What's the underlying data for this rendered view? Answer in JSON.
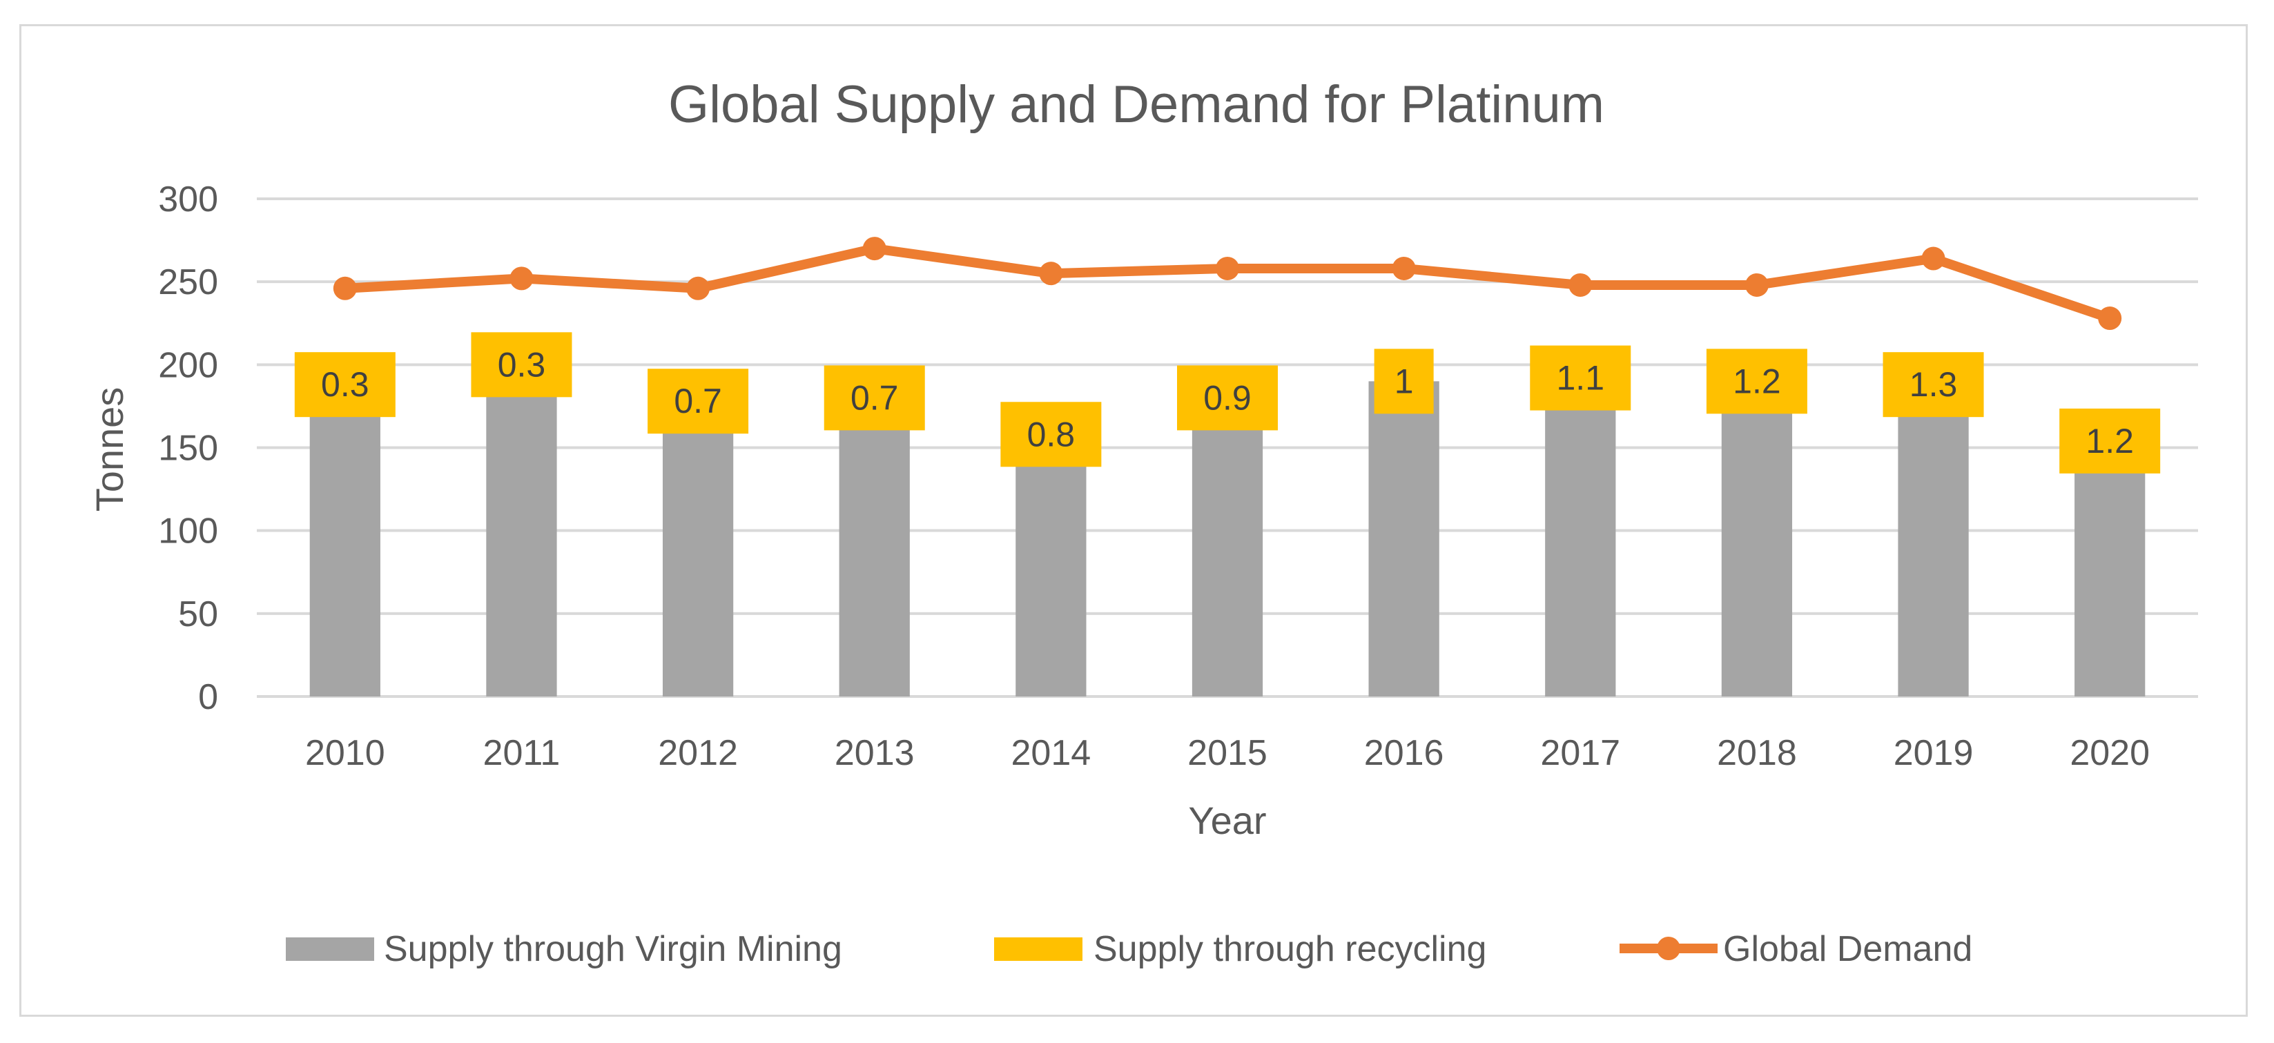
{
  "chart_data": {
    "type": "bar",
    "title": "Global Supply and Demand for Platinum",
    "xlabel": "Year",
    "ylabel": "Tonnes",
    "ylim": [
      0,
      300
    ],
    "yticks": [
      0,
      50,
      100,
      150,
      200,
      250,
      300
    ],
    "grid": true,
    "legend_position": "bottom",
    "categories": [
      "2010",
      "2011",
      "2012",
      "2013",
      "2014",
      "2015",
      "2016",
      "2017",
      "2018",
      "2019",
      "2020"
    ],
    "series": [
      {
        "name": "Supply through Virgin Mining",
        "type": "bar",
        "color": "#a5a5a5",
        "values": [
          188,
          200,
          178,
          180,
          158,
          180,
          190,
          192,
          190,
          188,
          154
        ]
      },
      {
        "name": "Supply through recycling",
        "type": "label-box",
        "color": "#ffc000",
        "values": [
          0.3,
          0.3,
          0.7,
          0.7,
          0.8,
          0.9,
          1,
          1.1,
          1.2,
          1.3,
          1.2
        ],
        "labels": [
          "0.3",
          "0.3",
          "0.7",
          "0.7",
          "0.8",
          "0.9",
          "1",
          "1.1",
          "1.2",
          "1.3",
          "1.2"
        ]
      },
      {
        "name": "Global Demand",
        "type": "line",
        "color": "#ed7d31",
        "values": [
          246,
          252,
          246,
          270,
          255,
          258,
          258,
          248,
          248,
          264,
          228
        ]
      }
    ]
  }
}
